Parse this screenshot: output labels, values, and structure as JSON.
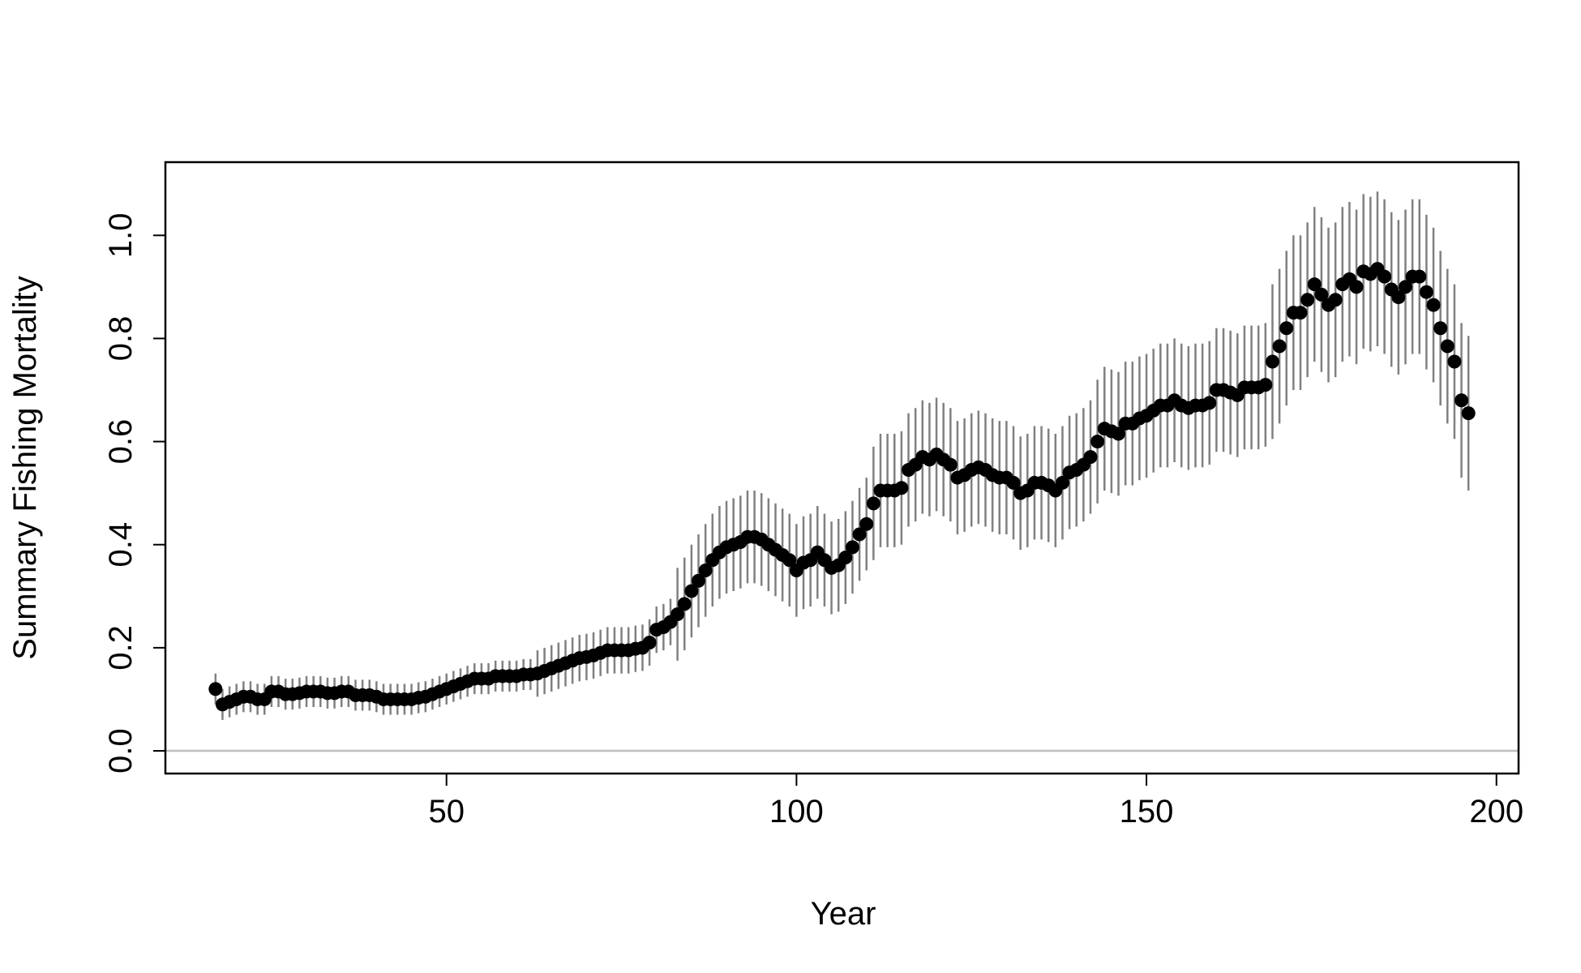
{
  "chart_data": {
    "type": "errorbar",
    "xlabel": "Year",
    "ylabel": "Summary Fishing Mortality",
    "x": [
      17,
      18,
      19,
      20,
      21,
      22,
      23,
      24,
      25,
      26,
      27,
      28,
      29,
      30,
      31,
      32,
      33,
      34,
      35,
      36,
      37,
      38,
      39,
      40,
      41,
      42,
      43,
      44,
      45,
      46,
      47,
      48,
      49,
      50,
      51,
      52,
      53,
      54,
      55,
      56,
      57,
      58,
      59,
      60,
      61,
      62,
      63,
      64,
      65,
      66,
      67,
      68,
      69,
      70,
      71,
      72,
      73,
      74,
      75,
      76,
      77,
      78,
      79,
      80,
      81,
      82,
      83,
      84,
      85,
      86,
      87,
      88,
      89,
      90,
      91,
      92,
      93,
      94,
      95,
      96,
      97,
      98,
      99,
      100,
      101,
      102,
      103,
      104,
      105,
      106,
      107,
      108,
      109,
      110,
      111,
      112,
      113,
      114,
      115,
      116,
      117,
      118,
      119,
      120,
      121,
      122,
      123,
      124,
      125,
      126,
      127,
      128,
      129,
      130,
      131,
      132,
      133,
      134,
      135,
      136,
      137,
      138,
      139,
      140,
      141,
      142,
      143,
      144,
      145,
      146,
      147,
      148,
      149,
      150,
      151,
      152,
      153,
      154,
      155,
      156,
      157,
      158,
      159,
      160,
      161,
      162,
      163,
      164,
      165,
      166,
      167,
      168,
      169,
      170,
      171,
      172,
      173,
      174,
      175,
      176,
      177,
      178,
      179,
      180,
      181,
      182,
      183,
      184,
      185,
      186,
      187,
      188,
      189,
      190,
      191,
      192,
      193,
      194,
      195,
      196
    ],
    "values": [
      0.12,
      0.09,
      0.095,
      0.1,
      0.105,
      0.105,
      0.1,
      0.1,
      0.115,
      0.115,
      0.11,
      0.11,
      0.112,
      0.115,
      0.115,
      0.115,
      0.112,
      0.112,
      0.115,
      0.115,
      0.108,
      0.108,
      0.108,
      0.105,
      0.1,
      0.1,
      0.1,
      0.1,
      0.1,
      0.103,
      0.105,
      0.11,
      0.115,
      0.12,
      0.125,
      0.13,
      0.135,
      0.14,
      0.14,
      0.14,
      0.145,
      0.145,
      0.145,
      0.145,
      0.148,
      0.148,
      0.15,
      0.155,
      0.16,
      0.165,
      0.17,
      0.175,
      0.18,
      0.182,
      0.185,
      0.19,
      0.195,
      0.195,
      0.195,
      0.195,
      0.198,
      0.2,
      0.21,
      0.235,
      0.24,
      0.25,
      0.265,
      0.285,
      0.31,
      0.33,
      0.35,
      0.37,
      0.385,
      0.395,
      0.4,
      0.405,
      0.415,
      0.415,
      0.41,
      0.4,
      0.39,
      0.38,
      0.37,
      0.35,
      0.365,
      0.37,
      0.385,
      0.37,
      0.355,
      0.36,
      0.375,
      0.395,
      0.42,
      0.44,
      0.48,
      0.505,
      0.505,
      0.505,
      0.51,
      0.545,
      0.555,
      0.57,
      0.565,
      0.575,
      0.565,
      0.555,
      0.53,
      0.535,
      0.545,
      0.55,
      0.545,
      0.535,
      0.53,
      0.53,
      0.52,
      0.5,
      0.505,
      0.52,
      0.52,
      0.515,
      0.505,
      0.52,
      0.54,
      0.545,
      0.555,
      0.57,
      0.6,
      0.625,
      0.62,
      0.615,
      0.635,
      0.635,
      0.645,
      0.65,
      0.66,
      0.67,
      0.67,
      0.68,
      0.67,
      0.665,
      0.67,
      0.67,
      0.675,
      0.7,
      0.7,
      0.695,
      0.69,
      0.705,
      0.705,
      0.705,
      0.71,
      0.755,
      0.785,
      0.82,
      0.85,
      0.85,
      0.875,
      0.905,
      0.885,
      0.865,
      0.875,
      0.905,
      0.915,
      0.9,
      0.93,
      0.925,
      0.935,
      0.92,
      0.895,
      0.88,
      0.9,
      0.92,
      0.92,
      0.89,
      0.865,
      0.82,
      0.785,
      0.755,
      0.68,
      0.655
    ],
    "errors": [
      0.03,
      0.03,
      0.03,
      0.03,
      0.03,
      0.03,
      0.03,
      0.03,
      0.03,
      0.03,
      0.03,
      0.03,
      0.03,
      0.03,
      0.03,
      0.03,
      0.03,
      0.03,
      0.03,
      0.03,
      0.03,
      0.03,
      0.03,
      0.03,
      0.03,
      0.03,
      0.03,
      0.03,
      0.03,
      0.03,
      0.03,
      0.03,
      0.03,
      0.03,
      0.03,
      0.03,
      0.03,
      0.03,
      0.03,
      0.03,
      0.03,
      0.03,
      0.03,
      0.03,
      0.03,
      0.03,
      0.045,
      0.045,
      0.045,
      0.045,
      0.045,
      0.045,
      0.045,
      0.045,
      0.045,
      0.045,
      0.045,
      0.045,
      0.045,
      0.045,
      0.045,
      0.045,
      0.045,
      0.045,
      0.045,
      0.045,
      0.09,
      0.09,
      0.09,
      0.09,
      0.09,
      0.09,
      0.09,
      0.09,
      0.09,
      0.09,
      0.09,
      0.09,
      0.09,
      0.09,
      0.09,
      0.09,
      0.09,
      0.09,
      0.09,
      0.09,
      0.09,
      0.09,
      0.09,
      0.09,
      0.09,
      0.09,
      0.09,
      0.09,
      0.11,
      0.11,
      0.11,
      0.11,
      0.11,
      0.11,
      0.11,
      0.11,
      0.11,
      0.11,
      0.11,
      0.11,
      0.11,
      0.11,
      0.11,
      0.11,
      0.11,
      0.11,
      0.11,
      0.11,
      0.11,
      0.11,
      0.11,
      0.11,
      0.11,
      0.11,
      0.11,
      0.11,
      0.11,
      0.11,
      0.11,
      0.11,
      0.12,
      0.12,
      0.12,
      0.12,
      0.12,
      0.12,
      0.12,
      0.12,
      0.12,
      0.12,
      0.12,
      0.12,
      0.12,
      0.12,
      0.12,
      0.12,
      0.12,
      0.12,
      0.12,
      0.12,
      0.12,
      0.12,
      0.12,
      0.12,
      0.12,
      0.15,
      0.15,
      0.15,
      0.15,
      0.15,
      0.15,
      0.15,
      0.15,
      0.15,
      0.15,
      0.15,
      0.15,
      0.15,
      0.15,
      0.15,
      0.15,
      0.15,
      0.15,
      0.15,
      0.15,
      0.15,
      0.15,
      0.15,
      0.15,
      0.15,
      0.15,
      0.15,
      0.15,
      0.15
    ],
    "color": "#000000",
    "error_color": "#808080",
    "hline": 0,
    "hline_color": "#bebebe",
    "xlim": [
      9.84,
      203.16
    ],
    "xticks": [
      50,
      100,
      150,
      200
    ],
    "ylim": [
      -0.044,
      1.142
    ],
    "yticks": [
      {
        "value": 0,
        "label": "0.0"
      },
      {
        "value": 0.2,
        "label": "0.2"
      },
      {
        "value": 0.4,
        "label": "0.4"
      },
      {
        "value": 0.6,
        "label": "0.6"
      },
      {
        "value": 0.8,
        "label": "0.8"
      },
      {
        "value": 1,
        "label": "1.0"
      }
    ]
  }
}
